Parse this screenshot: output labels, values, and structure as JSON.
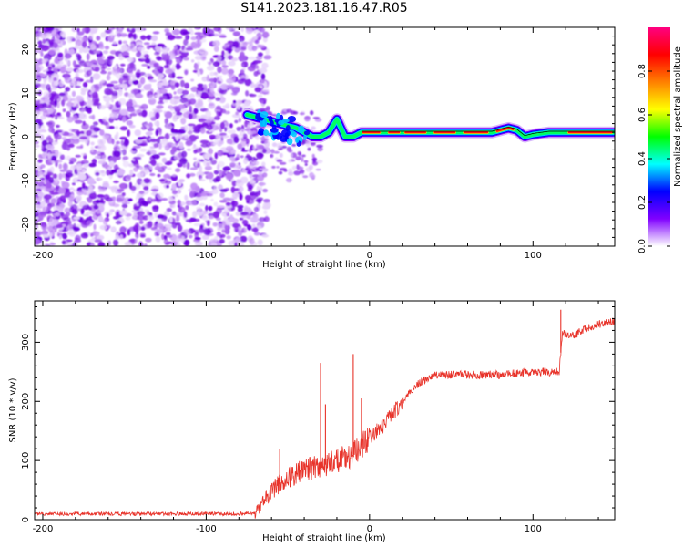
{
  "title": "S141.2023.181.16.47.R05",
  "chart_data": [
    {
      "type": "heatmap",
      "panel": "spectrogram",
      "xlabel": "Height of straight line (km)",
      "ylabel": "Frequency (Hz)",
      "xlim": [
        -205,
        150
      ],
      "ylim": [
        -25,
        25
      ],
      "xticks": [
        -200,
        -100,
        0,
        100
      ],
      "yticks": [
        -20,
        -10,
        0,
        10,
        20
      ],
      "ridge": {
        "x": [
          -75,
          -65,
          -55,
          -45,
          -40,
          -35,
          -30,
          -25,
          -20,
          -15,
          -10,
          -5,
          0,
          25,
          50,
          75,
          80,
          85,
          90,
          95,
          100,
          110,
          120,
          150
        ],
        "freq": [
          5,
          4,
          3,
          2,
          1,
          0,
          0,
          1,
          4,
          0,
          0,
          1,
          1,
          1,
          1,
          1,
          1.5,
          2,
          1.5,
          0,
          0.5,
          1,
          1,
          1
        ]
      },
      "noise_region": {
        "x_from": -205,
        "x_to": -70
      },
      "colorbar": {
        "label": "Normalized spectral amplitude",
        "range": [
          0.0,
          1.0
        ],
        "ticks": [
          "0.0",
          "0.2",
          "0.4",
          "0.6",
          "0.8"
        ],
        "colors": [
          "#ffffff",
          "#8000ff",
          "#0000ff",
          "#00ffff",
          "#00ff00",
          "#ffff00",
          "#ff8000",
          "#ff0000",
          "#ff0080"
        ]
      }
    },
    {
      "type": "line",
      "panel": "snr",
      "xlabel": "Height of straight line (km)",
      "ylabel": "SNR (10 * v/v)",
      "xlim": [
        -205,
        150
      ],
      "ylim": [
        0,
        370
      ],
      "xticks": [
        -200,
        -100,
        0,
        100
      ],
      "yticks": [
        0,
        100,
        200,
        300
      ],
      "color": "#e8332a",
      "series": [
        {
          "x": [
            -205,
            -150,
            -100,
            -80,
            -70,
            -60,
            -50,
            -40,
            -30,
            -20,
            -10,
            0,
            10,
            20,
            30,
            40,
            50,
            60,
            70,
            80,
            90,
            100,
            110,
            116,
            118,
            125,
            130,
            140,
            150
          ],
          "y": [
            10,
            10,
            10,
            10,
            12,
            50,
            70,
            85,
            90,
            100,
            110,
            135,
            165,
            200,
            230,
            245,
            245,
            245,
            245,
            245,
            248,
            250,
            250,
            250,
            315,
            310,
            320,
            330,
            335
          ]
        }
      ],
      "spikes": [
        {
          "x": -55,
          "y": 120
        },
        {
          "x": -30,
          "y": 265
        },
        {
          "x": -27,
          "y": 195
        },
        {
          "x": -10,
          "y": 280
        },
        {
          "x": -5,
          "y": 205
        },
        {
          "x": 117,
          "y": 355
        }
      ]
    }
  ]
}
